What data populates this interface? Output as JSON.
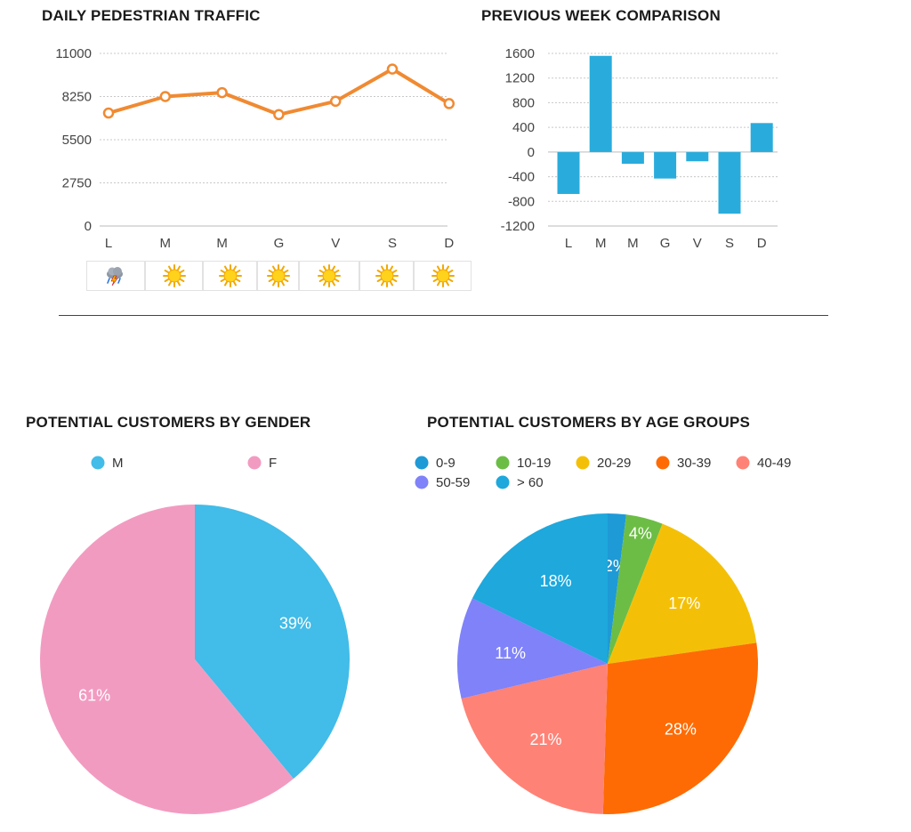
{
  "line_chart": {
    "title": "DAILY PEDESTRIAN TRAFFIC",
    "color": "#f08a32"
  },
  "bar_chart": {
    "title": "PREVIOUS WEEK COMPARISON",
    "color": "#29acdc"
  },
  "weather": {
    "icons": [
      "storm-cloud-icon",
      "sun-icon",
      "sun-icon",
      "sun-icon",
      "sun-icon",
      "sun-icon",
      "sun-icon"
    ]
  },
  "gender_chart": {
    "title": "POTENTIAL CUSTOMERS BY GENDER"
  },
  "age_chart": {
    "title": "POTENTIAL CUSTOMERS BY AGE GROUPS"
  },
  "chart_data": [
    {
      "type": "line",
      "title": "DAILY PEDESTRIAN TRAFFIC",
      "categories": [
        "L",
        "M",
        "M",
        "G",
        "V",
        "S",
        "D"
      ],
      "yticks": [
        "0",
        "2750",
        "5500",
        "8250",
        "11000"
      ],
      "ylim": [
        0,
        11000
      ],
      "grid": true,
      "series": [
        {
          "values": [
            7200,
            8250,
            8500,
            7100,
            7950,
            10000,
            7800
          ]
        }
      ]
    },
    {
      "type": "bar",
      "title": "PREVIOUS WEEK COMPARISON",
      "categories": [
        "L",
        "M",
        "M",
        "G",
        "V",
        "S",
        "D"
      ],
      "yticks": [
        "1600",
        "1200",
        "800",
        "400",
        "0",
        "-400",
        "-800",
        "-1200"
      ],
      "ylim": [
        -1200,
        1600
      ],
      "grid": true,
      "values": [
        -680,
        1560,
        -190,
        -430,
        -150,
        -1000,
        470
      ]
    },
    {
      "type": "pie",
      "title": "POTENTIAL CUSTOMERS BY GENDER",
      "legend": "top",
      "slices": [
        {
          "label": "M",
          "value": 39,
          "text": "39%",
          "color": "#42bce8"
        },
        {
          "label": "F",
          "value": 61,
          "text": "61%",
          "color": "#f29bc1"
        }
      ]
    },
    {
      "type": "pie",
      "title": "POTENTIAL CUSTOMERS BY AGE GROUPS",
      "legend": "top",
      "slices": [
        {
          "label": "0-9",
          "value": 2,
          "text": "2%",
          "color": "#1e9ad6"
        },
        {
          "label": "10-19",
          "value": 4,
          "text": "4%",
          "color": "#6cbd45"
        },
        {
          "label": "20-29",
          "value": 17,
          "text": "17%",
          "color": "#f4c007"
        },
        {
          "label": "30-39",
          "value": 28,
          "text": "28%",
          "color": "#fe6b04"
        },
        {
          "label": "40-49",
          "value": 21,
          "text": "21%",
          "color": "#ff8276"
        },
        {
          "label": "50-59",
          "value": 11,
          "text": "11%",
          "color": "#7f82f8"
        },
        {
          "label": "> 60",
          "value": 18,
          "text": "18%",
          "color": "#1ea8dc"
        }
      ]
    }
  ]
}
